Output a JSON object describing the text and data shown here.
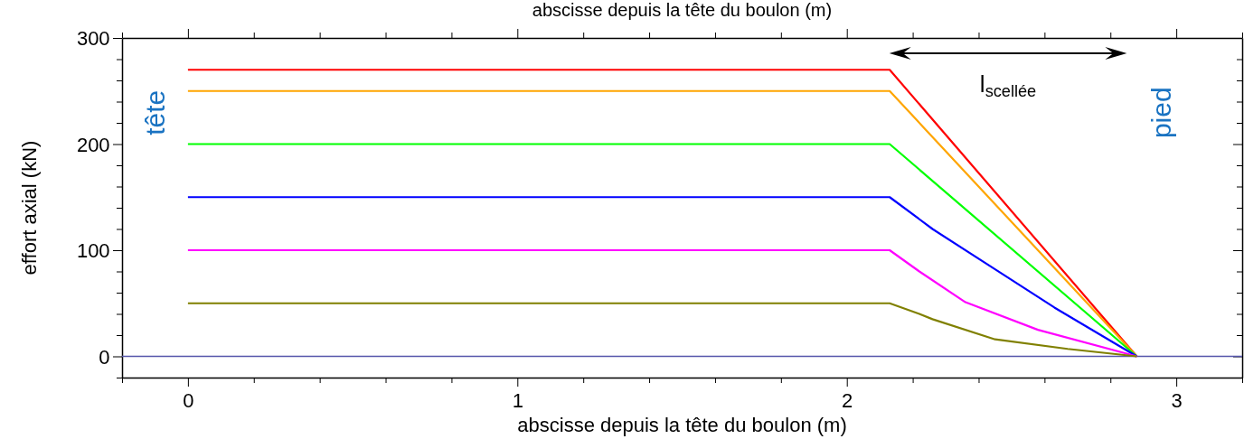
{
  "chart_data": {
    "type": "line",
    "xlabel": "abscisse depuis la tête du boulon (m)",
    "x2label": "abscisse depuis la tête du boulon (m)",
    "ylabel": "effort axial (kN)",
    "xlim": [
      -0.2,
      3.2
    ],
    "xticks": [
      {
        "value": -0.2,
        "label": null
      },
      0,
      {
        "value": 0.2,
        "label": null
      },
      {
        "value": 0.4,
        "label": null
      },
      {
        "value": 0.6,
        "label": null
      },
      {
        "value": 0.8,
        "label": null
      },
      1,
      {
        "value": 1.2,
        "label": null
      },
      {
        "value": 1.4,
        "label": null
      },
      {
        "value": 1.6,
        "label": null
      },
      {
        "value": 1.8,
        "label": null
      },
      2,
      {
        "value": 2.2,
        "label": null
      },
      {
        "value": 2.4,
        "label": null
      },
      {
        "value": 2.6,
        "label": null
      },
      {
        "value": 2.8,
        "label": null
      },
      3,
      {
        "value": 3.2,
        "label": null
      }
    ],
    "ylim": [
      -20,
      300
    ],
    "yticks": [
      {
        "value": -20,
        "label": null
      },
      0,
      {
        "value": 20,
        "label": null
      },
      {
        "value": 40,
        "label": null
      },
      {
        "value": 60,
        "label": null
      },
      {
        "value": 80,
        "label": null
      },
      100,
      {
        "value": 120,
        "label": null
      },
      {
        "value": 140,
        "label": null
      },
      {
        "value": 160,
        "label": null
      },
      {
        "value": 180,
        "label": null
      },
      200,
      {
        "value": 220,
        "label": null
      },
      {
        "value": 240,
        "label": null
      },
      {
        "value": 260,
        "label": null
      },
      {
        "value": 280,
        "label": null
      },
      300
    ],
    "marker": "none",
    "line_style": "solid",
    "series": [
      {
        "color": "#ff0000",
        "x": [
          0,
          2.13,
          2.88
        ],
        "values": [
          270,
          270,
          0
        ]
      },
      {
        "color": "#ffa500",
        "x": [
          0,
          2.13,
          2.88
        ],
        "values": [
          250,
          250,
          0
        ]
      },
      {
        "color": "#00ff00",
        "x": [
          0,
          2.13,
          2.88
        ],
        "values": [
          200,
          200,
          0
        ]
      },
      {
        "color": "#0000ff",
        "x": [
          0,
          2.13,
          2.26,
          2.45,
          2.63,
          2.88
        ],
        "values": [
          150,
          150,
          120,
          82,
          46,
          0
        ]
      },
      {
        "color": "#ff00ff",
        "x": [
          0,
          2.13,
          2.22,
          2.36,
          2.58,
          2.88
        ],
        "values": [
          100,
          100,
          80,
          51,
          25,
          0
        ]
      },
      {
        "color": "#808000",
        "x": [
          0,
          2.13,
          2.22,
          2.26,
          2.45,
          2.67,
          2.88
        ],
        "values": [
          50,
          50,
          40,
          35,
          16,
          7,
          0
        ]
      }
    ],
    "ref_lines": [
      {
        "axis": "y",
        "value": 0,
        "color": "#5555aa"
      }
    ],
    "annotations": [
      "tête",
      "pied",
      "l$_{scellée}$"
    ]
  }
}
